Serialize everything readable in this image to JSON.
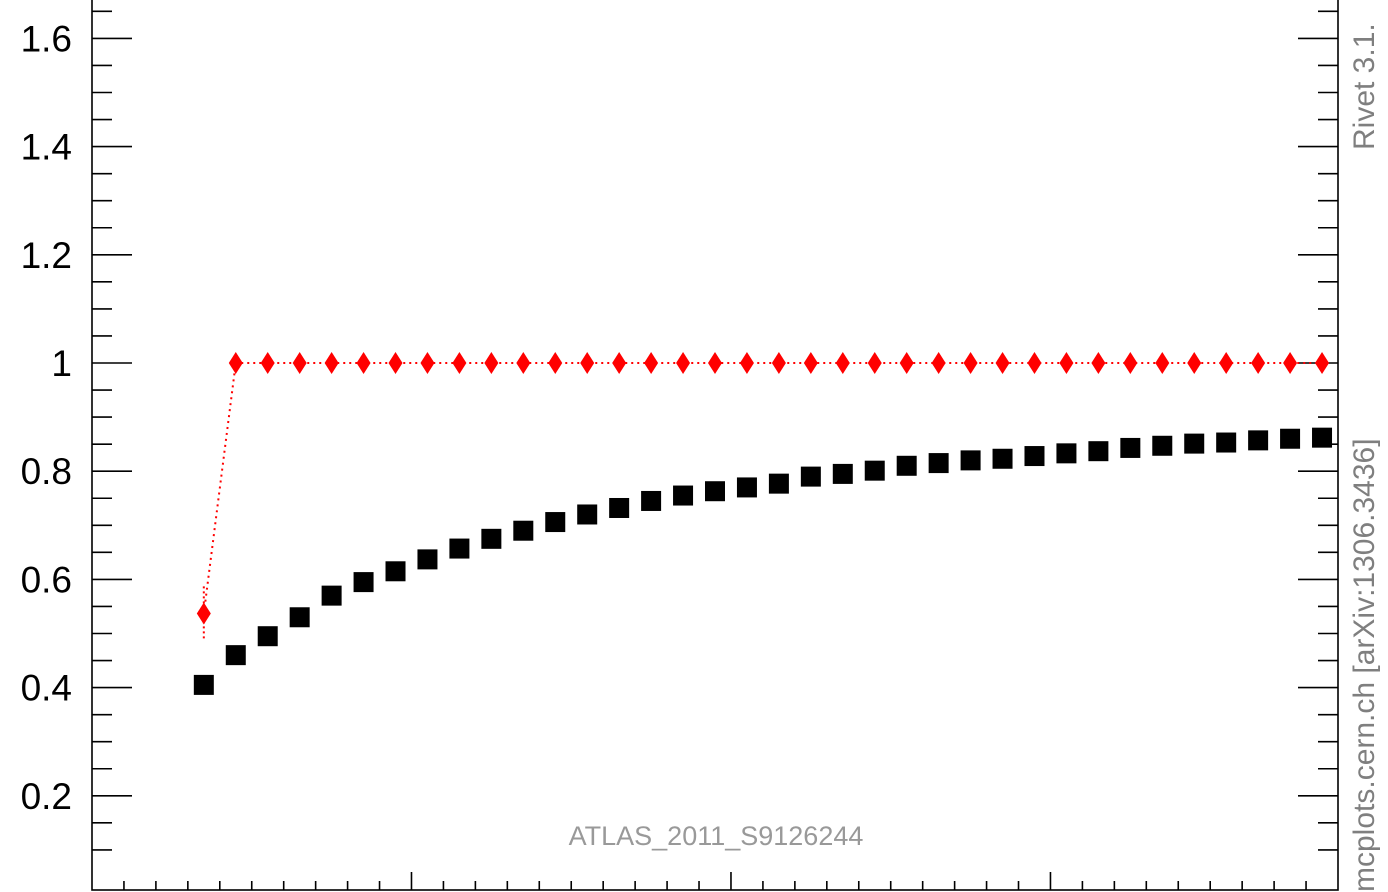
{
  "chart_data": {
    "type": "scatter",
    "title": "",
    "xlabel": "",
    "ylabel": "",
    "xlim": [
      0,
      39
    ],
    "ylim": [
      0.1,
      1.66
    ],
    "yticks": [
      {
        "value": 0.2,
        "label": "0.2"
      },
      {
        "value": 0.4,
        "label": "0.4"
      },
      {
        "value": 0.6,
        "label": "0.6"
      },
      {
        "value": 0.8,
        "label": "0.8"
      },
      {
        "value": 1.0,
        "label": "1"
      },
      {
        "value": 1.2,
        "label": "1.2"
      },
      {
        "value": 1.4,
        "label": "1.4"
      },
      {
        "value": 1.6,
        "label": "1.6"
      }
    ],
    "x": [
      3.5,
      4.5,
      5.5,
      6.5,
      7.5,
      8.5,
      9.5,
      10.5,
      11.5,
      12.5,
      13.5,
      14.5,
      15.5,
      16.5,
      17.5,
      18.5,
      19.5,
      20.5,
      21.5,
      22.5,
      23.5,
      24.5,
      25.5,
      26.5,
      27.5,
      28.5,
      29.5,
      30.5,
      31.5,
      32.5,
      33.5,
      34.5,
      35.5,
      36.5,
      37.5,
      38.5
    ],
    "series": [
      {
        "marker": "square",
        "color": "#000000",
        "line": false,
        "values": [
          0.405,
          0.46,
          0.495,
          0.53,
          0.57,
          0.595,
          0.615,
          0.637,
          0.657,
          0.675,
          0.69,
          0.706,
          0.72,
          0.732,
          0.745,
          0.755,
          0.763,
          0.77,
          0.777,
          0.79,
          0.795,
          0.801,
          0.81,
          0.815,
          0.82,
          0.823,
          0.828,
          0.833,
          0.837,
          0.843,
          0.847,
          0.851,
          0.853,
          0.857,
          0.86,
          0.862
        ]
      },
      {
        "marker": "diamond",
        "color": "#ff0000",
        "line": "dotted",
        "values": [
          0.537,
          1,
          1,
          1,
          1,
          1,
          1,
          1,
          1,
          1,
          1,
          1,
          1,
          1,
          1,
          1,
          1,
          1,
          1,
          1,
          1,
          1,
          1,
          1,
          1,
          1,
          1,
          1,
          1,
          1,
          1,
          1,
          1,
          1,
          1,
          1
        ],
        "errors": [
          0.05,
          0,
          0,
          0,
          0,
          0,
          0,
          0,
          0,
          0,
          0,
          0,
          0,
          0,
          0,
          0,
          0,
          0,
          0,
          0,
          0,
          0,
          0,
          0,
          0,
          0,
          0,
          0,
          0,
          0,
          0,
          0,
          0,
          0,
          0,
          0
        ]
      }
    ],
    "grid": false,
    "legend": "none"
  },
  "labels": {
    "watermark": "ATLAS_2011_S9126244",
    "rivet": "Rivet 3.1.",
    "mcplots": "mcplots.cern.ch [arXiv:1306.3436]"
  },
  "colors": {
    "axis": "#000000",
    "side_text": "#7f7f7f",
    "watermark": "#999999"
  }
}
